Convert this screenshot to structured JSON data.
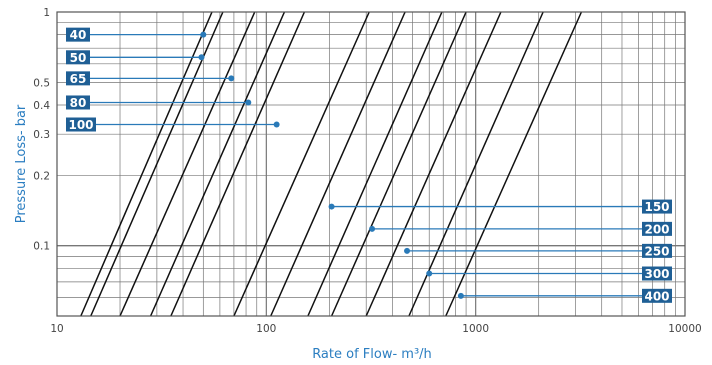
{
  "colors": {
    "label_box": "#1f5f95",
    "leader_line": "#2a7ab8",
    "curve": "#111111",
    "grid": "#777777",
    "axis_label": "#2b7ec1"
  },
  "chart_data": {
    "type": "line",
    "xlabel": "Rate of Flow- m³/h",
    "ylabel": "Pressure Loss- bar",
    "xscale": "log",
    "yscale": "log",
    "xlim": [
      10,
      10000
    ],
    "ylim": [
      0.05,
      1
    ],
    "grid": true,
    "x_ticks": [
      "10",
      "100",
      "1000",
      "10000"
    ],
    "y_ticks": [
      "1",
      "0.5",
      "0.4",
      "0.3",
      "0.2",
      "0.1"
    ],
    "series": [
      {
        "name": "40",
        "line": [
          [
            13,
            0.05
          ],
          [
            55,
            1
          ]
        ],
        "marker": [
          50,
          0.8
        ],
        "label_side": "left"
      },
      {
        "name": "50",
        "line": [
          [
            14.5,
            0.05
          ],
          [
            62,
            1
          ]
        ],
        "marker": [
          49,
          0.64
        ],
        "label_side": "left"
      },
      {
        "name": "65",
        "line": [
          [
            20,
            0.05
          ],
          [
            88,
            1
          ]
        ],
        "marker": [
          68,
          0.52
        ],
        "label_side": "left"
      },
      {
        "name": "80",
        "line": [
          [
            28,
            0.05
          ],
          [
            122,
            1
          ]
        ],
        "marker": [
          82,
          0.41
        ],
        "label_side": "left"
      },
      {
        "name": "100",
        "line": [
          [
            35,
            0.05
          ],
          [
            152,
            1
          ]
        ],
        "marker": [
          112,
          0.33
        ],
        "label_side": "left"
      },
      {
        "name": "150",
        "line": [
          [
            70,
            0.05
          ],
          [
            310,
            1
          ]
        ],
        "marker": [
          205,
          0.147
        ],
        "label_side": "right"
      },
      {
        "name": "200",
        "line": [
          [
            105,
            0.05
          ],
          [
            460,
            1
          ]
        ],
        "marker": [
          320,
          0.118
        ],
        "label_side": "right"
      },
      {
        "name": "250",
        "line": [
          [
            158,
            0.05
          ],
          [
            690,
            1
          ]
        ],
        "marker": [
          470,
          0.095
        ],
        "label_side": "right"
      },
      {
        "name": "300",
        "line": [
          [
            205,
            0.05
          ],
          [
            900,
            1
          ]
        ],
        "marker": [
          600,
          0.076
        ],
        "label_side": "right"
      },
      {
        "name": "400",
        "line": [
          [
            300,
            0.05
          ],
          [
            1320,
            1
          ]
        ],
        "marker": [
          850,
          0.061
        ],
        "label_side": "right"
      },
      {
        "name": "",
        "line": [
          [
            480,
            0.05
          ],
          [
            2100,
            1
          ]
        ]
      },
      {
        "name": "",
        "line": [
          [
            720,
            0.05
          ],
          [
            3200,
            1
          ]
        ]
      }
    ]
  }
}
